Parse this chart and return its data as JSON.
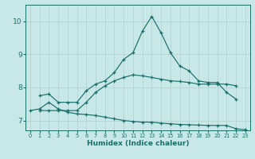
{
  "xlabel": "Humidex (Indice chaleur)",
  "bg_color": "#c8e8e8",
  "line_color": "#1a6e6a",
  "grid_color": "#b0d0d0",
  "xlim_min": -0.5,
  "xlim_max": 23.5,
  "ylim_min": 6.7,
  "ylim_max": 10.5,
  "yticks": [
    7,
    8,
    9,
    10
  ],
  "xticks": [
    0,
    1,
    2,
    3,
    4,
    5,
    6,
    7,
    8,
    9,
    10,
    11,
    12,
    13,
    14,
    15,
    16,
    17,
    18,
    19,
    20,
    21,
    22,
    23
  ],
  "s1_x": [
    1,
    2,
    3,
    4,
    5,
    6,
    7,
    8,
    9,
    10,
    11,
    12,
    13,
    14,
    15,
    16,
    17,
    18,
    19,
    20,
    21,
    22
  ],
  "s1_y": [
    7.75,
    7.8,
    7.55,
    7.55,
    7.55,
    7.9,
    8.1,
    8.2,
    8.45,
    8.85,
    9.05,
    9.7,
    10.15,
    9.65,
    9.05,
    8.65,
    8.5,
    8.2,
    8.15,
    8.15,
    7.85,
    7.65
  ],
  "s2_x": [
    1,
    2,
    3,
    4,
    5,
    6,
    7,
    8,
    9,
    10,
    11,
    12,
    13,
    14,
    15,
    16,
    17,
    18,
    19,
    20,
    21,
    22
  ],
  "s2_y": [
    7.3,
    7.3,
    7.3,
    7.3,
    7.3,
    7.55,
    7.85,
    8.05,
    8.2,
    8.3,
    8.38,
    8.35,
    8.3,
    8.25,
    8.2,
    8.18,
    8.15,
    8.1,
    8.1,
    8.1,
    8.1,
    8.05
  ],
  "s3_x": [
    0,
    1,
    2,
    3,
    4,
    5,
    6,
    7,
    8,
    9,
    10,
    11,
    12,
    13,
    14,
    15,
    16,
    17,
    18,
    19,
    20,
    21,
    22,
    23
  ],
  "s3_y": [
    7.3,
    7.35,
    7.55,
    7.35,
    7.25,
    7.2,
    7.18,
    7.15,
    7.1,
    7.05,
    7.0,
    6.97,
    6.95,
    6.95,
    6.92,
    6.9,
    6.88,
    6.87,
    6.86,
    6.85,
    6.85,
    6.85,
    6.75,
    6.72
  ]
}
